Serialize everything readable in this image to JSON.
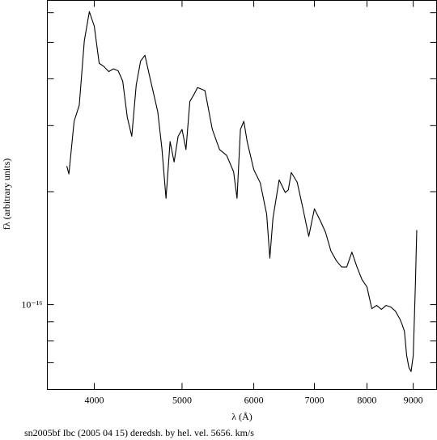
{
  "chart_data": {
    "type": "line",
    "title": "sn2005bf Ibc (2005 04 15) deredsh. by hel. vel.  5656. km/s",
    "xlabel": "λ (Å)",
    "ylabel": "fλ (arbitrary units)",
    "xscale": "log",
    "yscale": "log",
    "xlim": [
      3550,
      9550
    ],
    "ylim": [
      5.94e-17,
      6.47e-16
    ],
    "xticks": [
      4000,
      5000,
      6000,
      7000,
      8000,
      9000
    ],
    "yticks": [
      {
        "value": 7e-17,
        "label": null
      },
      {
        "value": 8e-17,
        "label": null
      },
      {
        "value": 9e-17,
        "label": null
      },
      {
        "value": 1e-16,
        "label": "10⁻¹⁶"
      },
      {
        "value": 2e-16,
        "label": null
      },
      {
        "value": 3e-16,
        "label": null
      },
      {
        "value": 4e-16,
        "label": null
      },
      {
        "value": 5e-16,
        "label": null
      },
      {
        "value": 6e-16,
        "label": null
      }
    ],
    "color": "#000000",
    "x": [
      3730,
      3750,
      3800,
      3850,
      3900,
      3950,
      4000,
      4050,
      4100,
      4150,
      4200,
      4250,
      4300,
      4350,
      4400,
      4450,
      4500,
      4550,
      4600,
      4650,
      4700,
      4750,
      4800,
      4850,
      4900,
      4950,
      5000,
      5050,
      5100,
      5150,
      5200,
      5300,
      5400,
      5500,
      5600,
      5700,
      5750,
      5800,
      5850,
      5900,
      6000,
      6100,
      6200,
      6250,
      6300,
      6400,
      6500,
      6550,
      6600,
      6700,
      6800,
      6900,
      7000,
      7100,
      7200,
      7300,
      7400,
      7500,
      7600,
      7700,
      7800,
      7900,
      8000,
      8100,
      8200,
      8300,
      8400,
      8500,
      8600,
      8700,
      8750,
      8800,
      8850,
      8900,
      8950,
      9000,
      9050,
      9080
    ],
    "values": [
      2.34e-16,
      2.23e-16,
      3.08e-16,
      3.4e-16,
      5.05e-16,
      6.04e-16,
      5.52e-16,
      4.4e-16,
      4.31e-16,
      4.18e-16,
      4.25e-16,
      4.2e-16,
      3.94e-16,
      3.16e-16,
      2.81e-16,
      3.85e-16,
      4.46e-16,
      4.62e-16,
      4.1e-16,
      3.66e-16,
      3.27e-16,
      2.61e-16,
      1.92e-16,
      2.72e-16,
      2.4e-16,
      2.81e-16,
      2.93e-16,
      2.59e-16,
      3.48e-16,
      3.62e-16,
      3.79e-16,
      3.72e-16,
      2.93e-16,
      2.59e-16,
      2.5e-16,
      2.26e-16,
      1.92e-16,
      2.93e-16,
      3.08e-16,
      2.72e-16,
      2.29e-16,
      2.11e-16,
      1.74e-16,
      1.33e-16,
      1.7e-16,
      2.15e-16,
      1.99e-16,
      2.02e-16,
      2.25e-16,
      2.12e-16,
      1.8e-16,
      1.52e-16,
      1.8e-16,
      1.68e-16,
      1.56e-16,
      1.39e-16,
      1.31e-16,
      1.26e-16,
      1.26e-16,
      1.38e-16,
      1.26e-16,
      1.166e-16,
      1.115e-16,
      9.75e-17,
      9.95e-17,
      9.71e-17,
      9.95e-17,
      9.85e-17,
      9.61e-17,
      9.15e-17,
      8.84e-17,
      8.49e-17,
      7.32e-17,
      6.8e-17,
      6.63e-17,
      7.32e-17,
      1.143e-16,
      1.58e-16
    ]
  }
}
